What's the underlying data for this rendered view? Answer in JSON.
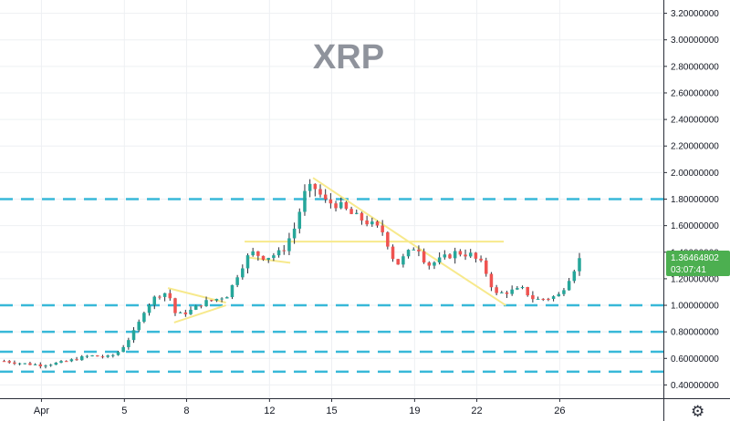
{
  "colors": {
    "up": "#26a69a",
    "down": "#ef5350",
    "wick": "#2a2e39",
    "grid": "#eef0f3",
    "level": "#38b8d8",
    "trend": "#f7e98c",
    "price_bg": "#4caf50"
  },
  "settings": {
    "icon": "gear-icon"
  },
  "price_label": {
    "price": "1.36464802",
    "countdown": "03:07:41"
  },
  "chart_data": {
    "type": "candlestick",
    "title": "XRP",
    "grid": true,
    "ylim": [
      0.3,
      3.3
    ],
    "y_ticks": [
      "0.40000000",
      "0.60000000",
      "0.80000000",
      "1.00000000",
      "1.20000000",
      "1.40000000",
      "1.60000000",
      "1.80000000",
      "2.00000000",
      "2.20000000",
      "2.40000000",
      "2.60000000",
      "2.80000000",
      "3.00000000",
      "3.20000000"
    ],
    "x_day_range": [
      -1,
      31
    ],
    "x_ticks": [
      {
        "day": 1,
        "label": "Apr"
      },
      {
        "day": 5,
        "label": "5"
      },
      {
        "day": 8,
        "label": "8"
      },
      {
        "day": 12,
        "label": "12"
      },
      {
        "day": 15,
        "label": "15"
      },
      {
        "day": 19,
        "label": "19"
      },
      {
        "day": 22,
        "label": "22"
      },
      {
        "day": 26,
        "label": "26"
      }
    ],
    "horizontal_levels": [
      1.8,
      1.0,
      0.8,
      0.65,
      0.5
    ],
    "trend_lines": [
      [
        [
          7.1,
          1.13
        ],
        [
          9.9,
          1.02
        ]
      ],
      [
        [
          7.4,
          0.87
        ],
        [
          9.9,
          1.0
        ]
      ],
      [
        [
          10.8,
          1.48
        ],
        [
          23.3,
          1.48
        ]
      ],
      [
        [
          11.0,
          1.36
        ],
        [
          13.0,
          1.32
        ]
      ],
      [
        [
          14.1,
          1.96
        ],
        [
          19.0,
          1.45
        ]
      ],
      [
        [
          19.0,
          1.45
        ],
        [
          23.4,
          1.0
        ]
      ]
    ],
    "path_points": [
      [
        -0.8,
        0.58
      ],
      [
        0.2,
        0.56
      ],
      [
        1.0,
        0.55
      ],
      [
        2.0,
        0.57
      ],
      [
        3.3,
        0.62
      ],
      [
        4.3,
        0.61
      ],
      [
        4.8,
        0.66
      ],
      [
        5.6,
        0.83
      ],
      [
        6.0,
        0.98
      ],
      [
        6.6,
        1.08
      ],
      [
        7.1,
        1.1
      ],
      [
        7.5,
        0.92
      ],
      [
        8.2,
        0.96
      ],
      [
        8.8,
        1.02
      ],
      [
        9.3,
        1.04
      ],
      [
        10.0,
        1.08
      ],
      [
        10.6,
        1.28
      ],
      [
        11.1,
        1.4
      ],
      [
        11.8,
        1.36
      ],
      [
        12.6,
        1.4
      ],
      [
        13.2,
        1.58
      ],
      [
        13.7,
        1.84
      ],
      [
        14.1,
        1.9
      ],
      [
        14.7,
        1.78
      ],
      [
        15.3,
        1.76
      ],
      [
        16.0,
        1.68
      ],
      [
        16.8,
        1.62
      ],
      [
        17.5,
        1.55
      ],
      [
        18.1,
        1.3
      ],
      [
        18.6,
        1.38
      ],
      [
        19.1,
        1.46
      ],
      [
        19.6,
        1.3
      ],
      [
        20.2,
        1.34
      ],
      [
        21.0,
        1.4
      ],
      [
        21.7,
        1.38
      ],
      [
        22.3,
        1.3
      ],
      [
        22.9,
        1.08
      ],
      [
        23.4,
        1.1
      ],
      [
        24.2,
        1.12
      ],
      [
        24.8,
        1.04
      ],
      [
        25.6,
        1.06
      ],
      [
        26.0,
        1.08
      ],
      [
        26.6,
        1.25
      ],
      [
        27.0,
        1.36
      ]
    ]
  }
}
